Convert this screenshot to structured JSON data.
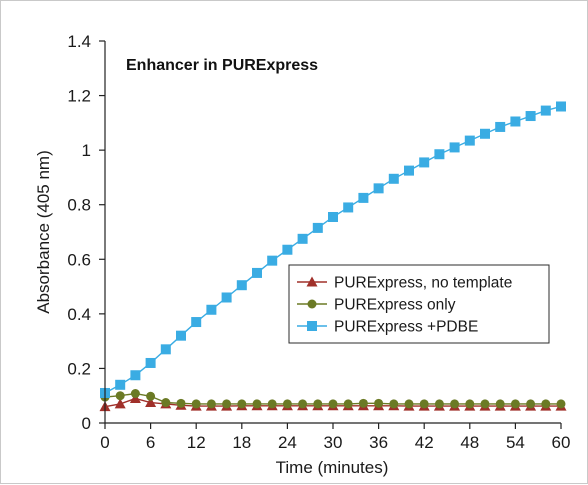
{
  "chart_data": {
    "type": "line",
    "title": "Enhancer in PURExpress",
    "xlabel": "Time (minutes)",
    "ylabel": "Absorbance (405 nm)",
    "xlim": [
      0,
      60
    ],
    "ylim": [
      0,
      1.4
    ],
    "xticks": [
      0,
      6,
      12,
      18,
      24,
      30,
      36,
      42,
      48,
      54,
      60
    ],
    "yticks": [
      0,
      0.2,
      0.4,
      0.6,
      0.8,
      1,
      1.2,
      1.4
    ],
    "ytick_labels": [
      "0",
      "0.2",
      "0.4",
      "0.6",
      "0.8",
      "1",
      "1.2",
      "1.4"
    ],
    "grid": false,
    "legend_position": "center-right",
    "x": [
      0,
      2,
      4,
      6,
      8,
      10,
      12,
      14,
      16,
      18,
      20,
      22,
      24,
      26,
      28,
      30,
      32,
      34,
      36,
      38,
      40,
      42,
      44,
      46,
      48,
      50,
      52,
      54,
      56,
      58,
      60
    ],
    "series": [
      {
        "name": "PURExpress, no template",
        "color": "#a0302a",
        "marker": "triangle",
        "values": [
          0.06,
          0.07,
          0.09,
          0.075,
          0.07,
          0.065,
          0.062,
          0.062,
          0.062,
          0.063,
          0.063,
          0.063,
          0.063,
          0.063,
          0.063,
          0.063,
          0.063,
          0.063,
          0.063,
          0.063,
          0.062,
          0.062,
          0.062,
          0.062,
          0.062,
          0.062,
          0.062,
          0.062,
          0.062,
          0.062,
          0.062
        ]
      },
      {
        "name": "PURExpress only",
        "color": "#6b7a25",
        "marker": "circle",
        "values": [
          0.095,
          0.1,
          0.108,
          0.098,
          0.075,
          0.072,
          0.07,
          0.07,
          0.07,
          0.07,
          0.07,
          0.07,
          0.07,
          0.07,
          0.07,
          0.07,
          0.07,
          0.072,
          0.072,
          0.07,
          0.07,
          0.07,
          0.07,
          0.07,
          0.07,
          0.07,
          0.07,
          0.07,
          0.07,
          0.07,
          0.07
        ]
      },
      {
        "name": "PURExpress +PDBE",
        "color": "#3aace3",
        "marker": "square",
        "values": [
          0.11,
          0.14,
          0.175,
          0.22,
          0.27,
          0.32,
          0.37,
          0.415,
          0.46,
          0.505,
          0.55,
          0.595,
          0.635,
          0.675,
          0.715,
          0.755,
          0.79,
          0.825,
          0.86,
          0.895,
          0.925,
          0.955,
          0.985,
          1.01,
          1.035,
          1.06,
          1.085,
          1.105,
          1.125,
          1.145,
          1.16
        ]
      }
    ]
  }
}
